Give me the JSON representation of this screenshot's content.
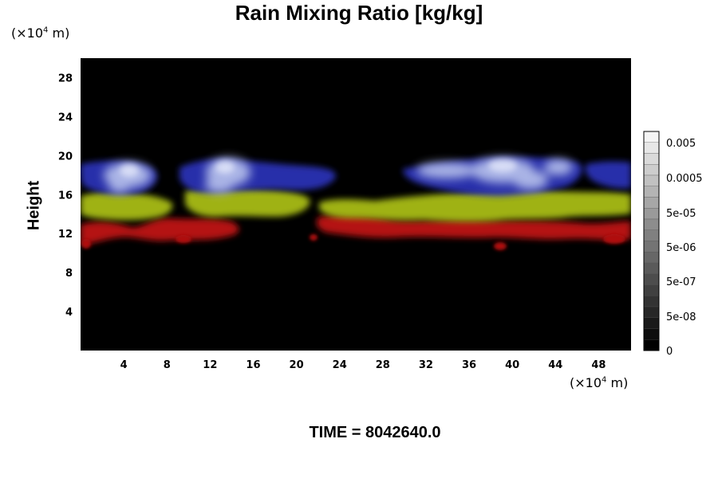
{
  "chart_data": {
    "type": "heatmap",
    "title": "Rain Mixing Ratio [kg/kg]",
    "ylabel": "Height",
    "y_unit": {
      "prefix": "(×10",
      "exp": "4",
      "suffix": " m)"
    },
    "x_unit": {
      "prefix": "(×10",
      "exp": "4",
      "suffix": " m)"
    },
    "xlim": [
      0,
      51
    ],
    "ylim": [
      0,
      30
    ],
    "x_ticks": [
      4,
      8,
      12,
      16,
      20,
      24,
      28,
      32,
      36,
      40,
      44,
      48
    ],
    "y_ticks": [
      4,
      8,
      12,
      16,
      20,
      24,
      28
    ],
    "grid": false,
    "colorbar": {
      "position": "right",
      "labels": [
        "0.005",
        "0.0005",
        "5e-05",
        "5e-06",
        "5e-07",
        "5e-08",
        "0"
      ]
    },
    "layers": [
      {
        "name": "red band",
        "color": "#c81414",
        "height_range": [
          11,
          13.5
        ]
      },
      {
        "name": "yellow-green band",
        "color": "#b4c814",
        "height_range": [
          13.5,
          16.5
        ]
      },
      {
        "name": "blue-white band",
        "color": "#4650d2",
        "height_range": [
          16,
          20
        ]
      }
    ],
    "time_label": "TIME = 8042640.0"
  },
  "colors": {
    "background": "#000000",
    "red": "#c81414",
    "yellow": "#b4c814",
    "blue": "#3c46c8",
    "white": "#c8d2f0"
  }
}
